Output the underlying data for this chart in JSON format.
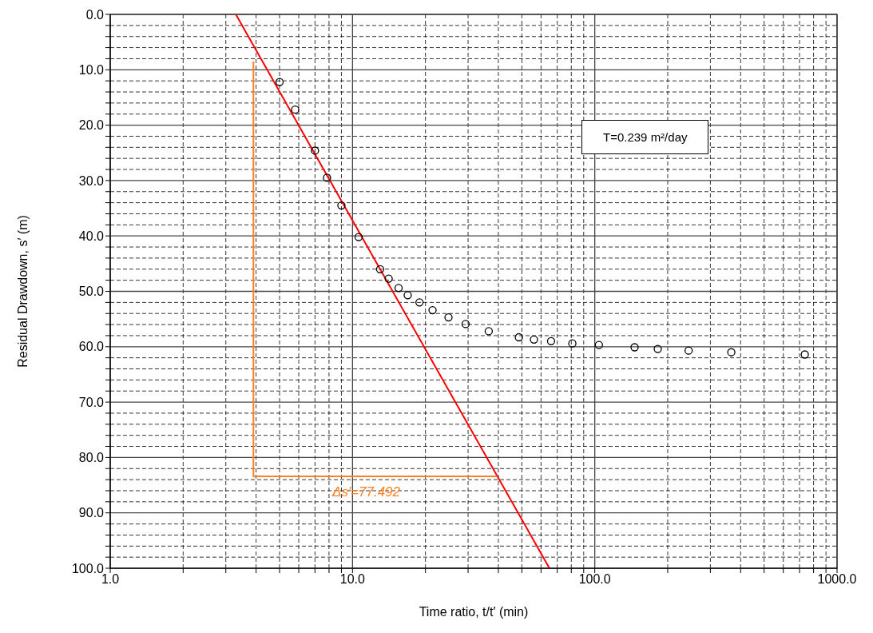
{
  "chart_data": {
    "type": "scatter",
    "xlabel": "Time ratio, t/t′ (min)",
    "ylabel": "Residual Drawdown, s′ (m)",
    "log": "x",
    "xlim": [
      1,
      1000
    ],
    "ylim": [
      100,
      0
    ],
    "xticks": [
      {
        "value": 1,
        "label": "1.0"
      },
      {
        "value": 2,
        "label": null
      },
      {
        "value": 3,
        "label": null
      },
      {
        "value": 4,
        "label": null
      },
      {
        "value": 5,
        "label": null
      },
      {
        "value": 6,
        "label": null
      },
      {
        "value": 7,
        "label": null
      },
      {
        "value": 8,
        "label": null
      },
      {
        "value": 9,
        "label": null
      },
      {
        "value": 10,
        "label": "10.0"
      },
      {
        "value": 20,
        "label": null
      },
      {
        "value": 30,
        "label": null
      },
      {
        "value": 40,
        "label": null
      },
      {
        "value": 50,
        "label": null
      },
      {
        "value": 60,
        "label": null
      },
      {
        "value": 70,
        "label": null
      },
      {
        "value": 80,
        "label": null
      },
      {
        "value": 90,
        "label": null
      },
      {
        "value": 100,
        "label": "100.0"
      },
      {
        "value": 200,
        "label": null
      },
      {
        "value": 300,
        "label": null
      },
      {
        "value": 400,
        "label": null
      },
      {
        "value": 500,
        "label": null
      },
      {
        "value": 600,
        "label": null
      },
      {
        "value": 700,
        "label": null
      },
      {
        "value": 800,
        "label": null
      },
      {
        "value": 900,
        "label": null
      },
      {
        "value": 1000,
        "label": "1000.0"
      }
    ],
    "yticks": [
      {
        "value": 0,
        "label": "0.0"
      },
      {
        "value": 2,
        "label": null
      },
      {
        "value": 4,
        "label": null
      },
      {
        "value": 6,
        "label": null
      },
      {
        "value": 8,
        "label": null
      },
      {
        "value": 10,
        "label": "10.0"
      },
      {
        "value": 12,
        "label": null
      },
      {
        "value": 14,
        "label": null
      },
      {
        "value": 16,
        "label": null
      },
      {
        "value": 18,
        "label": null
      },
      {
        "value": 20,
        "label": "20.0"
      },
      {
        "value": 22,
        "label": null
      },
      {
        "value": 24,
        "label": null
      },
      {
        "value": 26,
        "label": null
      },
      {
        "value": 28,
        "label": null
      },
      {
        "value": 30,
        "label": "30.0"
      },
      {
        "value": 32,
        "label": null
      },
      {
        "value": 34,
        "label": null
      },
      {
        "value": 36,
        "label": null
      },
      {
        "value": 38,
        "label": null
      },
      {
        "value": 40,
        "label": "40.0"
      },
      {
        "value": 42,
        "label": null
      },
      {
        "value": 44,
        "label": null
      },
      {
        "value": 46,
        "label": null
      },
      {
        "value": 48,
        "label": null
      },
      {
        "value": 50,
        "label": "50.0"
      },
      {
        "value": 52,
        "label": null
      },
      {
        "value": 54,
        "label": null
      },
      {
        "value": 56,
        "label": null
      },
      {
        "value": 58,
        "label": null
      },
      {
        "value": 60,
        "label": "60.0"
      },
      {
        "value": 62,
        "label": null
      },
      {
        "value": 64,
        "label": null
      },
      {
        "value": 66,
        "label": null
      },
      {
        "value": 68,
        "label": null
      },
      {
        "value": 70,
        "label": "70.0"
      },
      {
        "value": 72,
        "label": null
      },
      {
        "value": 74,
        "label": null
      },
      {
        "value": 76,
        "label": null
      },
      {
        "value": 78,
        "label": null
      },
      {
        "value": 80,
        "label": "80.0"
      },
      {
        "value": 82,
        "label": null
      },
      {
        "value": 84,
        "label": null
      },
      {
        "value": 86,
        "label": null
      },
      {
        "value": 88,
        "label": null
      },
      {
        "value": 90,
        "label": "90.0"
      },
      {
        "value": 92,
        "label": null
      },
      {
        "value": 94,
        "label": null
      },
      {
        "value": 96,
        "label": null
      },
      {
        "value": 98,
        "label": null
      },
      {
        "value": 100,
        "label": "100.0"
      }
    ],
    "grid": true,
    "annotations": [
      "T=0.239 m²/day",
      "Δs′=77.492"
    ],
    "series": [
      {
        "marker": "circle",
        "color": "#000000",
        "x": [
          5.0,
          5.8,
          7.0,
          7.85,
          9.0,
          10.6,
          13.0,
          14.1,
          15.5,
          16.9,
          18.9,
          21.4,
          24.9,
          29.3,
          36.5,
          48.6,
          56.1,
          66,
          80.8,
          104,
          146,
          182,
          244,
          366,
          736
        ],
        "values": [
          12.2,
          17.2,
          24.6,
          29.5,
          34.5,
          40.2,
          46.0,
          47.7,
          49.4,
          50.7,
          52.0,
          53.4,
          54.7,
          55.9,
          57.2,
          58.3,
          58.7,
          59.0,
          59.4,
          59.7,
          60.1,
          60.4,
          60.7,
          61.0,
          61.4
        ]
      },
      {
        "type": "line",
        "color": "#ff0000",
        "x": [
          3.3,
          65
        ],
        "values": [
          0,
          100
        ]
      },
      {
        "type": "line",
        "color": "#ff8020",
        "x": [
          3.9,
          3.9,
          39.5
        ],
        "values": [
          8.5,
          83.4,
          83.4
        ]
      }
    ]
  }
}
